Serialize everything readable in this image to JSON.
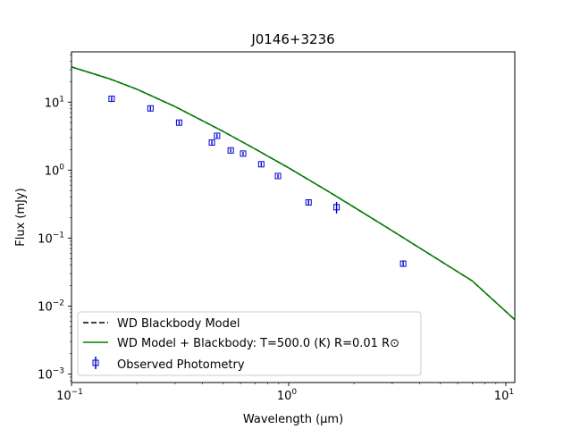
{
  "chart_data": {
    "type": "scatter",
    "title": "J0146+3236",
    "xlabel": "Wavelength (μm)",
    "ylabel": "Flux (mJy)",
    "x_scale": "log",
    "y_scale": "log",
    "xlim": [
      0.1,
      11
    ],
    "ylim": [
      0.00075,
      55
    ],
    "x_ticks": [
      {
        "value": 0.1,
        "base": "10",
        "exp": "−1"
      },
      {
        "value": 1,
        "base": "10",
        "exp": "0"
      },
      {
        "value": 10,
        "base": "10",
        "exp": "1"
      }
    ],
    "y_ticks": [
      {
        "value": 0.001,
        "base": "10",
        "exp": "−3"
      },
      {
        "value": 0.01,
        "base": "10",
        "exp": "−2"
      },
      {
        "value": 0.1,
        "base": "10",
        "exp": "−1"
      },
      {
        "value": 1,
        "base": "10",
        "exp": "0"
      },
      {
        "value": 10,
        "base": "10",
        "exp": "1"
      }
    ],
    "grid": false,
    "legend_position": "lower-left",
    "series": [
      {
        "name": "WD Blackbody Model",
        "kind": "line",
        "style": "dashed",
        "color": "#000000",
        "x": [
          0.1,
          0.15,
          0.2,
          0.3,
          0.5,
          0.7,
          1.0,
          1.5,
          2.0,
          3.0,
          5.0,
          7.0,
          11.0
        ],
        "y": [
          33.0,
          22.0,
          15.5,
          8.6,
          3.7,
          2.05,
          1.08,
          0.5,
          0.285,
          0.128,
          0.046,
          0.0235,
          0.0063
        ]
      },
      {
        "name": "WD Model + Blackbody: T=500.0 (K) R=0.01 R⊙",
        "kind": "line",
        "style": "solid",
        "color": "#008000",
        "x": [
          0.1,
          0.15,
          0.2,
          0.3,
          0.5,
          0.7,
          1.0,
          1.5,
          2.0,
          3.0,
          5.0,
          7.0,
          11.0
        ],
        "y": [
          33.0,
          22.0,
          15.5,
          8.6,
          3.7,
          2.05,
          1.08,
          0.5,
          0.285,
          0.128,
          0.046,
          0.0235,
          0.0063
        ]
      },
      {
        "name": "Observed Photometry",
        "kind": "errorbar",
        "color": "#0000cc",
        "x": [
          0.153,
          0.231,
          0.313,
          0.443,
          0.468,
          0.541,
          0.617,
          0.748,
          0.893,
          1.235,
          1.662,
          3.368
        ],
        "y": [
          11.2,
          8.1,
          5.0,
          2.55,
          3.2,
          1.95,
          1.75,
          1.22,
          0.82,
          0.335,
          0.285,
          0.042
        ],
        "yerr": [
          0.8,
          0.6,
          0.35,
          0.18,
          0.22,
          0.12,
          0.11,
          0.08,
          0.05,
          0.03,
          0.055,
          0.004
        ]
      }
    ]
  },
  "legend": {
    "entries": [
      {
        "label": "WD Blackbody Model"
      },
      {
        "label": "WD Model + Blackbody: T=500.0 (K) R=0.01 R⊙"
      },
      {
        "label": "Observed Photometry"
      }
    ]
  }
}
